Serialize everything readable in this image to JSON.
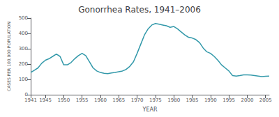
{
  "chart_data": {
    "type": "line",
    "title": "Gonorrhea Rates, 1941–2006",
    "xlabel": "YEAR",
    "ylabel": "CASES PER 100,000 POPULATION",
    "color": "#3399aa",
    "grid": false,
    "xlim": [
      1941,
      2006
    ],
    "ylim": [
      0,
      500
    ],
    "xticks": [
      1941,
      1945,
      1950,
      1955,
      1960,
      1965,
      1970,
      1975,
      1980,
      1985,
      1990,
      1995,
      2000,
      2005
    ],
    "yticks": [
      0,
      100,
      200,
      300,
      400,
      500
    ],
    "x": [
      1941,
      1942,
      1943,
      1944,
      1945,
      1946,
      1947,
      1948,
      1949,
      1950,
      1951,
      1952,
      1953,
      1954,
      1955,
      1956,
      1957,
      1958,
      1959,
      1960,
      1961,
      1962,
      1963,
      1964,
      1965,
      1966,
      1967,
      1968,
      1969,
      1970,
      1971,
      1972,
      1973,
      1974,
      1975,
      1976,
      1977,
      1978,
      1979,
      1980,
      1981,
      1982,
      1983,
      1984,
      1985,
      1986,
      1987,
      1988,
      1989,
      1990,
      1991,
      1992,
      1993,
      1994,
      1995,
      1996,
      1997,
      1998,
      1999,
      2000,
      2001,
      2002,
      2003,
      2004,
      2005,
      2006
    ],
    "values": [
      145,
      160,
      175,
      205,
      225,
      235,
      250,
      265,
      250,
      195,
      195,
      210,
      235,
      255,
      270,
      255,
      215,
      175,
      155,
      145,
      140,
      138,
      142,
      145,
      150,
      155,
      165,
      185,
      215,
      270,
      330,
      390,
      430,
      455,
      465,
      460,
      455,
      450,
      440,
      445,
      430,
      410,
      390,
      375,
      370,
      360,
      340,
      305,
      280,
      270,
      250,
      225,
      195,
      175,
      155,
      125,
      122,
      125,
      130,
      130,
      128,
      125,
      122,
      118,
      120,
      122
    ]
  }
}
